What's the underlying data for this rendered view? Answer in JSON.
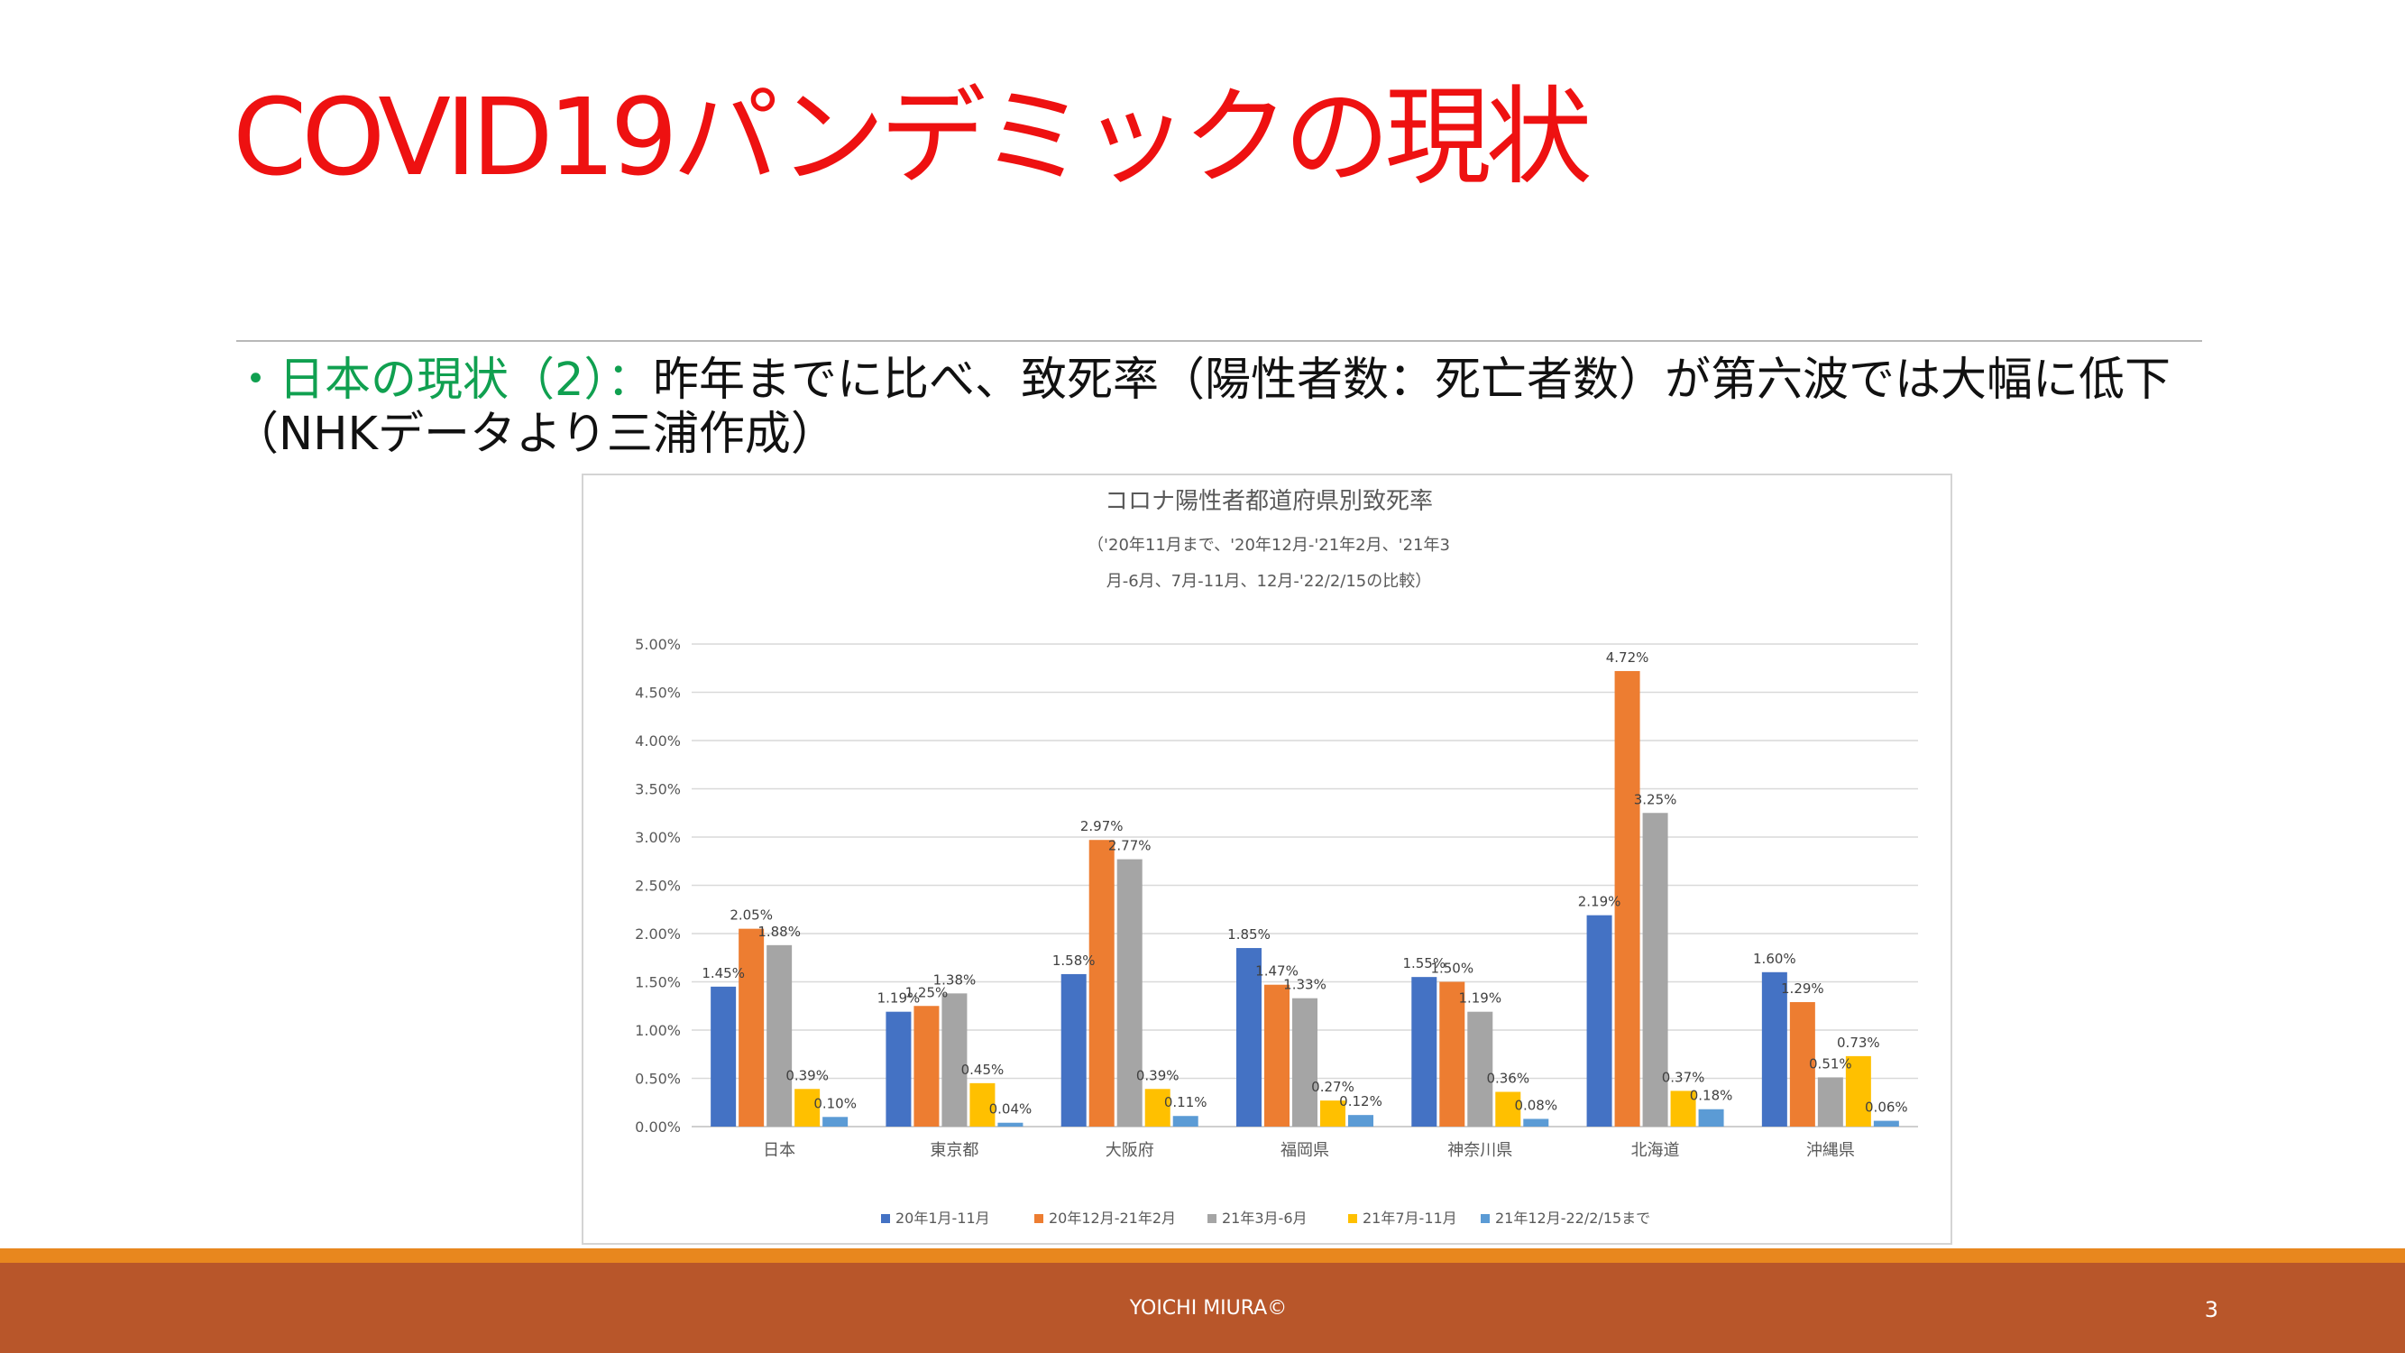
{
  "slide": {
    "title": "COVID19パンデミックの現状",
    "subtitle_lead": "・日本の現状（2）：",
    "subtitle_text": "昨年までに比べ、致死率（陽性者数：死亡者数）が第六波では大幅に低下（NHKデータより三浦作成）"
  },
  "footer": {
    "author": "YOICHI MIURA©",
    "page_number": "3"
  },
  "chart_data": {
    "type": "bar",
    "title": "コロナ陽性者都道府県別致死率",
    "subtitle_lines": [
      "（'20年11月まで、'20年12月-'21年2月、'21年3",
      "月-6月、7月-11月、12月-'22/2/15の比較）"
    ],
    "categories": [
      "日本",
      "東京都",
      "大阪府",
      "福岡県",
      "神奈川県",
      "北海道",
      "沖縄県"
    ],
    "series": [
      {
        "name": "20年1月-11月",
        "color": "#4472c4",
        "values": [
          1.45,
          1.19,
          1.58,
          1.85,
          1.55,
          2.19,
          1.6
        ]
      },
      {
        "name": "20年12月-21年2月",
        "color": "#ed7d31",
        "values": [
          2.05,
          1.25,
          2.97,
          1.47,
          1.5,
          4.72,
          1.29
        ]
      },
      {
        "name": "21年3月-6月",
        "color": "#a5a5a5",
        "values": [
          1.88,
          1.38,
          2.77,
          1.33,
          1.19,
          3.25,
          0.51
        ]
      },
      {
        "name": "21年7月-11月",
        "color": "#ffc000",
        "values": [
          0.39,
          0.45,
          0.39,
          0.27,
          0.36,
          0.37,
          0.73
        ]
      },
      {
        "name": "21年12月-22/2/15まで",
        "color": "#5b9bd5",
        "values": [
          0.1,
          0.04,
          0.11,
          0.12,
          0.08,
          0.18,
          0.06
        ]
      }
    ],
    "data_labels": [
      [
        "1.45%",
        "1.19%",
        "1.58%",
        "1.85%",
        "1.55%",
        "2.19%",
        "1.60%"
      ],
      [
        "2.05%",
        "1.25%",
        "2.97%",
        "1.47%",
        "1.50%",
        "4.72%",
        "1.29%"
      ],
      [
        "1.88%",
        "1.38%",
        "2.77%",
        "1.33%",
        "1.19%",
        "3.25%",
        "0.51%"
      ],
      [
        "0.39%",
        "0.45%",
        "0.39%",
        "0.27%",
        "0.36%",
        "0.37%",
        "0.73%"
      ],
      [
        "0.10%",
        "0.04%",
        "0.11%",
        "0.12%",
        "0.08%",
        "0.18%",
        "0.06%"
      ]
    ],
    "y_ticks": [
      "0.00%",
      "0.50%",
      "1.00%",
      "1.50%",
      "2.00%",
      "2.50%",
      "3.00%",
      "3.50%",
      "4.00%",
      "4.50%",
      "5.00%"
    ],
    "ylim": [
      0,
      5
    ],
    "grid": true,
    "legend_position": "bottom"
  }
}
